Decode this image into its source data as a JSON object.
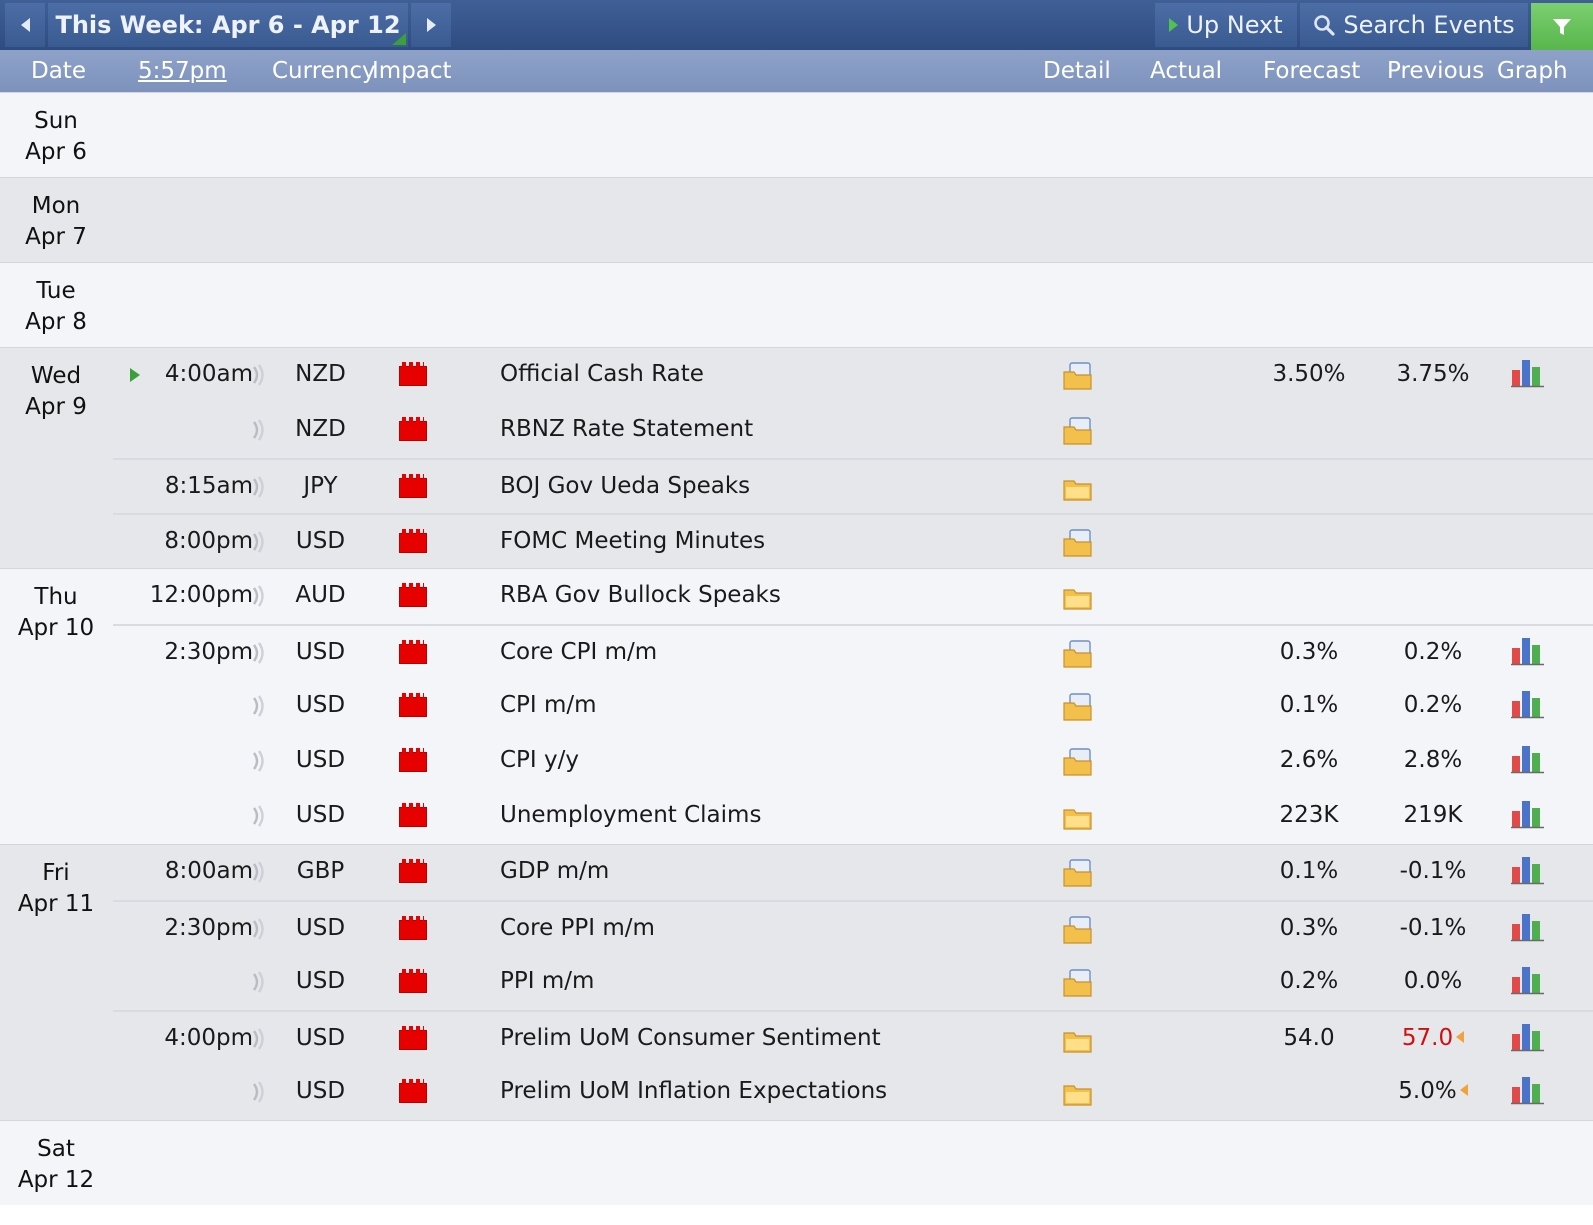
{
  "toolbar": {
    "prev_icon": "triangle-left-icon",
    "title": "This Week: Apr 6 - Apr 12",
    "next_icon": "triangle-right-icon",
    "up_next_label": "Up Next",
    "search_label": "Search Events",
    "filter_icon": "funnel-icon"
  },
  "header": {
    "date": "Date",
    "clock": "5:57pm",
    "currency": "Currency",
    "impact": "Impact",
    "detail": "Detail",
    "actual": "Actual",
    "forecast": "Forecast",
    "previous": "Previous",
    "graph": "Graph"
  },
  "colors": {
    "toolbar": "#2f4c80",
    "header": "#8ea2c9",
    "row_light": "#f4f5f9",
    "row_dark": "#e6e7eb",
    "impact_high": "#e60000",
    "revised_red": "#d20f0f",
    "filter_green": "#58b64c"
  },
  "days": [
    {
      "dow": "Sun",
      "date": "Apr 6",
      "events": []
    },
    {
      "dow": "Mon",
      "date": "Apr 7",
      "events": []
    },
    {
      "dow": "Tue",
      "date": "Apr 8",
      "events": []
    },
    {
      "dow": "Wed",
      "date": "Apr 9",
      "events": [
        {
          "time": "4:00am",
          "currency": "NZD",
          "impact": "high",
          "title": "Official Cash Rate",
          "detail_icon": "folder-open-icon",
          "actual": "",
          "forecast": "3.50%",
          "previous": "3.75%",
          "previous_revised": false,
          "graph": true,
          "up_next": true
        },
        {
          "time": "",
          "currency": "NZD",
          "impact": "high",
          "title": "RBNZ Rate Statement",
          "detail_icon": "folder-open-icon",
          "actual": "",
          "forecast": "",
          "previous": "",
          "previous_revised": false,
          "graph": false
        },
        {
          "time": "8:15am",
          "currency": "JPY",
          "impact": "high",
          "title": "BOJ Gov Ueda Speaks",
          "detail_icon": "folder-icon",
          "actual": "",
          "forecast": "",
          "previous": "",
          "previous_revised": false,
          "graph": false
        },
        {
          "time": "8:00pm",
          "currency": "USD",
          "impact": "high",
          "title": "FOMC Meeting Minutes",
          "detail_icon": "folder-open-icon",
          "actual": "",
          "forecast": "",
          "previous": "",
          "previous_revised": false,
          "graph": false
        }
      ]
    },
    {
      "dow": "Thu",
      "date": "Apr 10",
      "events": [
        {
          "time": "12:00pm",
          "currency": "AUD",
          "impact": "high",
          "title": "RBA Gov Bullock Speaks",
          "detail_icon": "folder-icon",
          "actual": "",
          "forecast": "",
          "previous": "",
          "previous_revised": false,
          "graph": false
        },
        {
          "time": "2:30pm",
          "currency": "USD",
          "impact": "high",
          "title": "Core CPI m/m",
          "detail_icon": "folder-open-icon",
          "actual": "",
          "forecast": "0.3%",
          "previous": "0.2%",
          "previous_revised": false,
          "graph": true
        },
        {
          "time": "",
          "currency": "USD",
          "impact": "high",
          "title": "CPI m/m",
          "detail_icon": "folder-open-icon",
          "actual": "",
          "forecast": "0.1%",
          "previous": "0.2%",
          "previous_revised": false,
          "graph": true
        },
        {
          "time": "",
          "currency": "USD",
          "impact": "high",
          "title": "CPI y/y",
          "detail_icon": "folder-open-icon",
          "actual": "",
          "forecast": "2.6%",
          "previous": "2.8%",
          "previous_revised": false,
          "graph": true
        },
        {
          "time": "",
          "currency": "USD",
          "impact": "high",
          "title": "Unemployment Claims",
          "detail_icon": "folder-icon",
          "actual": "",
          "forecast": "223K",
          "previous": "219K",
          "previous_revised": false,
          "graph": true
        }
      ]
    },
    {
      "dow": "Fri",
      "date": "Apr 11",
      "events": [
        {
          "time": "8:00am",
          "currency": "GBP",
          "impact": "high",
          "title": "GDP m/m",
          "detail_icon": "folder-open-icon",
          "actual": "",
          "forecast": "0.1%",
          "previous": "-0.1%",
          "previous_revised": false,
          "graph": true
        },
        {
          "time": "2:30pm",
          "currency": "USD",
          "impact": "high",
          "title": "Core PPI m/m",
          "detail_icon": "folder-open-icon",
          "actual": "",
          "forecast": "0.3%",
          "previous": "-0.1%",
          "previous_revised": false,
          "graph": true
        },
        {
          "time": "",
          "currency": "USD",
          "impact": "high",
          "title": "PPI m/m",
          "detail_icon": "folder-open-icon",
          "actual": "",
          "forecast": "0.2%",
          "previous": "0.0%",
          "previous_revised": false,
          "graph": true
        },
        {
          "time": "4:00pm",
          "currency": "USD",
          "impact": "high",
          "title": "Prelim UoM Consumer Sentiment",
          "detail_icon": "folder-icon",
          "actual": "",
          "forecast": "54.0",
          "previous": "57.0",
          "previous_revised": true,
          "previous_color": "red",
          "graph": true
        },
        {
          "time": "",
          "currency": "USD",
          "impact": "high",
          "title": "Prelim UoM Inflation Expectations",
          "detail_icon": "folder-icon",
          "actual": "",
          "forecast": "",
          "previous": "5.0%",
          "previous_revised": true,
          "previous_color": "black",
          "graph": true
        }
      ]
    },
    {
      "dow": "Sat",
      "date": "Apr 12",
      "events": []
    }
  ]
}
